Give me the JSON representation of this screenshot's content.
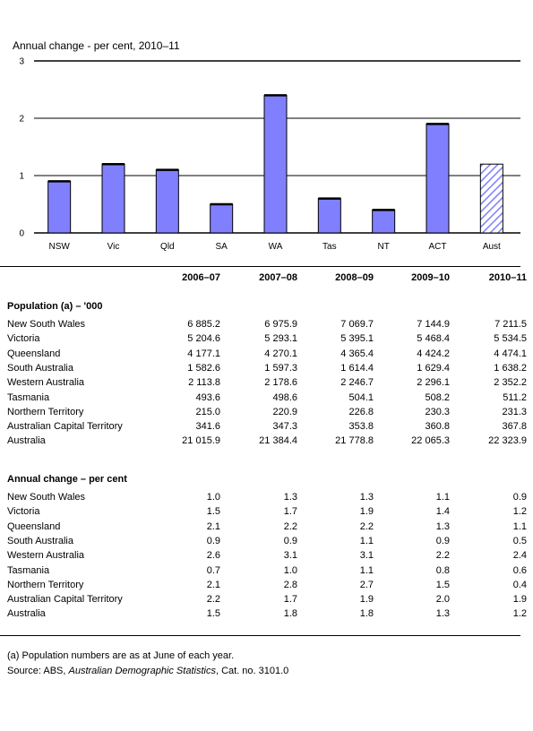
{
  "chart_data": {
    "type": "bar",
    "title": "Annual change - per cent, 2010–11",
    "categories": [
      "NSW",
      "Vic",
      "Qld",
      "SA",
      "WA",
      "Tas",
      "NT",
      "ACT",
      "Aust"
    ],
    "values": [
      0.9,
      1.2,
      1.1,
      0.5,
      2.4,
      0.6,
      0.4,
      1.9,
      1.2
    ],
    "yticks": [
      "0",
      "1",
      "2",
      "3"
    ],
    "ylim": [
      0,
      3
    ],
    "grid": true,
    "bar_color": "#8080ff",
    "hatched_category": "Aust"
  },
  "table": {
    "columns": [
      "2006–07",
      "2007–08",
      "2008–09",
      "2009–10",
      "2010–11"
    ],
    "population_section": "Population (a) – '000",
    "population_rows": [
      {
        "label": "New South Wales",
        "values": [
          "6 885.2",
          "6 975.9",
          "7 069.7",
          "7 144.9",
          "7 211.5"
        ]
      },
      {
        "label": "Victoria",
        "values": [
          "5 204.6",
          "5 293.1",
          "5 395.1",
          "5 468.4",
          "5 534.5"
        ]
      },
      {
        "label": "Queensland",
        "values": [
          "4 177.1",
          "4 270.1",
          "4 365.4",
          "4 424.2",
          "4 474.1"
        ]
      },
      {
        "label": "South Australia",
        "values": [
          "1 582.6",
          "1 597.3",
          "1 614.4",
          "1 629.4",
          "1 638.2"
        ]
      },
      {
        "label": "Western Australia",
        "values": [
          "2 113.8",
          "2 178.6",
          "2 246.7",
          "2 296.1",
          "2 352.2"
        ]
      },
      {
        "label": "Tasmania",
        "values": [
          "493.6",
          "498.6",
          "504.1",
          "508.2",
          "511.2"
        ]
      },
      {
        "label": "Northern Territory",
        "values": [
          "215.0",
          "220.9",
          "226.8",
          "230.3",
          "231.3"
        ]
      },
      {
        "label": "Australian Capital Territory",
        "values": [
          "341.6",
          "347.3",
          "353.8",
          "360.8",
          "367.8"
        ]
      },
      {
        "label": "Australia",
        "values": [
          "21 015.9",
          "21 384.4",
          "21 778.8",
          "22 065.3",
          "22 323.9"
        ]
      }
    ],
    "change_section": "Annual change – per cent",
    "change_rows": [
      {
        "label": "New South Wales",
        "values": [
          "1.0",
          "1.3",
          "1.3",
          "1.1",
          "0.9"
        ]
      },
      {
        "label": "Victoria",
        "values": [
          "1.5",
          "1.7",
          "1.9",
          "1.4",
          "1.2"
        ]
      },
      {
        "label": "Queensland",
        "values": [
          "2.1",
          "2.2",
          "2.2",
          "1.3",
          "1.1"
        ]
      },
      {
        "label": "South Australia",
        "values": [
          "0.9",
          "0.9",
          "1.1",
          "0.9",
          "0.5"
        ]
      },
      {
        "label": "Western Australia",
        "values": [
          "2.6",
          "3.1",
          "3.1",
          "2.2",
          "2.4"
        ]
      },
      {
        "label": "Tasmania",
        "values": [
          "0.7",
          "1.0",
          "1.1",
          "0.8",
          "0.6"
        ]
      },
      {
        "label": "Northern Territory",
        "values": [
          "2.1",
          "2.8",
          "2.7",
          "1.5",
          "0.4"
        ]
      },
      {
        "label": "Australian Capital Territory",
        "values": [
          "2.2",
          "1.7",
          "1.9",
          "2.0",
          "1.9"
        ]
      },
      {
        "label": "Australia",
        "values": [
          "1.5",
          "1.8",
          "1.8",
          "1.3",
          "1.2"
        ]
      }
    ]
  },
  "footnote": "(a) Population numbers are as at June of each year.",
  "source": {
    "prefix": "Source: ABS, ",
    "publication": "Australian Demographic Statistics",
    "suffix": ", Cat. no. 3101.0"
  }
}
